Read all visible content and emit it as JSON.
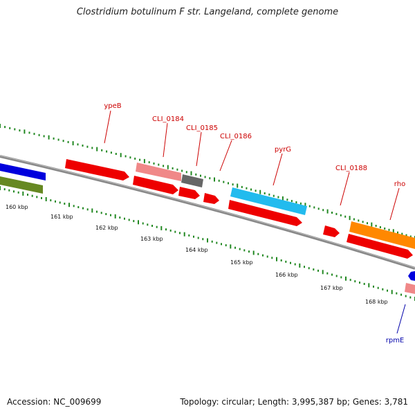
{
  "title": "Clostridium botulinum F str. Langeland, complete genome",
  "footer": {
    "accession": "Accession: NC_009699",
    "summary": "Topology: circular; Length: 3,995,387 bp; Genes: 3,781"
  },
  "colors": {
    "cds": "#ee0000",
    "cds_light": "#f08888",
    "gray": "#666666",
    "cyan": "#22bbee",
    "orange": "#ff8800",
    "blue": "#0000dd",
    "olive": "#668822",
    "tick": "#228822",
    "label_red": "#cc0000",
    "label_blue": "#0000aa"
  },
  "kbp_labels": [
    "160 kbp",
    "161 kbp",
    "162 kbp",
    "163 kbp",
    "164 kbp",
    "165 kbp",
    "166 kbp",
    "167 kbp",
    "168 kbp"
  ],
  "features": [
    {
      "id": "ypeB",
      "label": "ypeB",
      "color": "label_red"
    },
    {
      "id": "cli0184",
      "label": "CLI_0184",
      "color": "label_red"
    },
    {
      "id": "cli0185",
      "label": "CLI_0185",
      "color": "label_red"
    },
    {
      "id": "cli0186",
      "label": "CLI_0186",
      "color": "label_red"
    },
    {
      "id": "pyrg",
      "label": "pyrG",
      "color": "label_red"
    },
    {
      "id": "cli0188",
      "label": "CLI_0188",
      "color": "label_red"
    },
    {
      "id": "rho",
      "label": "rho",
      "color": "label_red"
    },
    {
      "id": "rpme",
      "label": "rpmE",
      "color": "label_blue"
    }
  ]
}
